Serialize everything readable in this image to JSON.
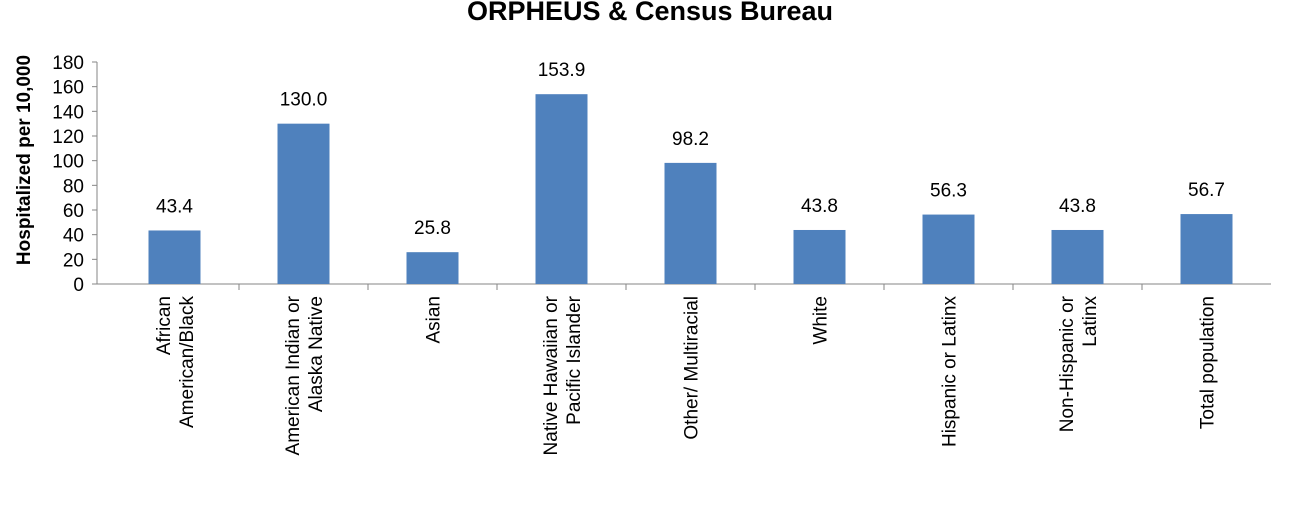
{
  "chart_data": {
    "type": "bar",
    "title": "ORPHEUS & Census Bureau",
    "y_label": "Hospitalized per 10,000",
    "categories": [
      "African American/Black",
      "American Indian or Alaska Native",
      "Asian",
      "Native Hawaiian or Pacific Islander",
      "Other/ Multiracial",
      "White",
      "Hispanic or Latinx",
      "Non-Hispanic or Latinx",
      "Total population"
    ],
    "values": [
      43.4,
      130.0,
      25.8,
      153.9,
      98.2,
      43.8,
      56.3,
      43.8,
      56.7
    ],
    "value_labels": [
      "43.4",
      "130.0",
      "25.8",
      "153.9",
      "98.2",
      "43.8",
      "56.3",
      "43.8",
      "56.7"
    ],
    "color": "#4f81bd",
    "ylim": [
      0,
      180
    ],
    "yticks": [
      0,
      20,
      40,
      60,
      80,
      100,
      120,
      140,
      160,
      180
    ],
    "grid": false
  }
}
